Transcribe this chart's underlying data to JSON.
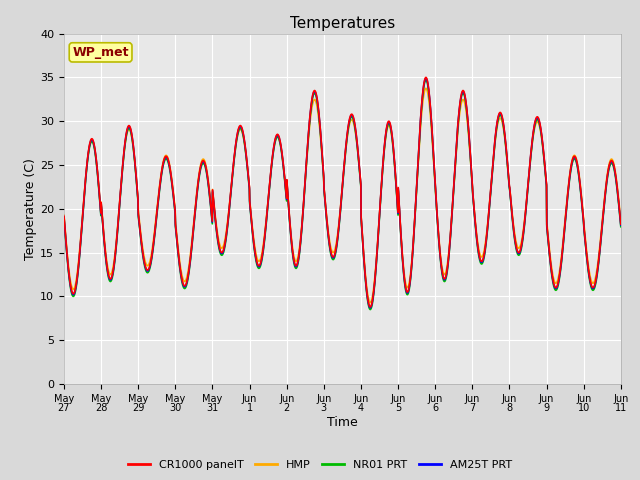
{
  "title": "Temperatures",
  "xlabel": "Time",
  "ylabel": "Temperature (C)",
  "ylim": [
    0,
    40
  ],
  "yticks": [
    0,
    5,
    10,
    15,
    20,
    25,
    30,
    35,
    40
  ],
  "fig_bg_color": "#d9d9d9",
  "plot_bg_color": "#e8e8e8",
  "legend_label": "WP_met",
  "series_labels": [
    "CR1000 panelT",
    "HMP",
    "NR01 PRT",
    "AM25T PRT"
  ],
  "series_colors": [
    "#ff0000",
    "#ffaa00",
    "#00bb00",
    "#0000ff"
  ],
  "x_tick_labels": [
    "May 27",
    "May 28",
    "May 29",
    "May 30",
    "May 31",
    "Jun 1",
    "Jun 2",
    "Jun 3",
    "Jun 4",
    "Jun 5",
    "Jun 6",
    "Jun 7",
    "Jun 8",
    "Jun 9",
    "Jun 10",
    "Jun 11"
  ],
  "n_days": 15,
  "peaks": [
    28.0,
    29.5,
    26.0,
    25.5,
    29.5,
    28.5,
    33.5,
    30.8,
    30.0,
    35.0,
    33.5,
    31.0,
    30.5,
    26.0,
    25.5
  ],
  "troughs": [
    10.3,
    12.0,
    13.0,
    11.2,
    15.0,
    13.5,
    13.5,
    14.5,
    8.8,
    10.5,
    12.0,
    14.0,
    15.0,
    11.0,
    11.0
  ],
  "hmp_scale": 0.85,
  "title_fontsize": 11,
  "axis_fontsize": 9,
  "tick_fontsize": 8,
  "line_width": 1.2,
  "grid_color": "#ffffff",
  "grid_linewidth": 0.8
}
